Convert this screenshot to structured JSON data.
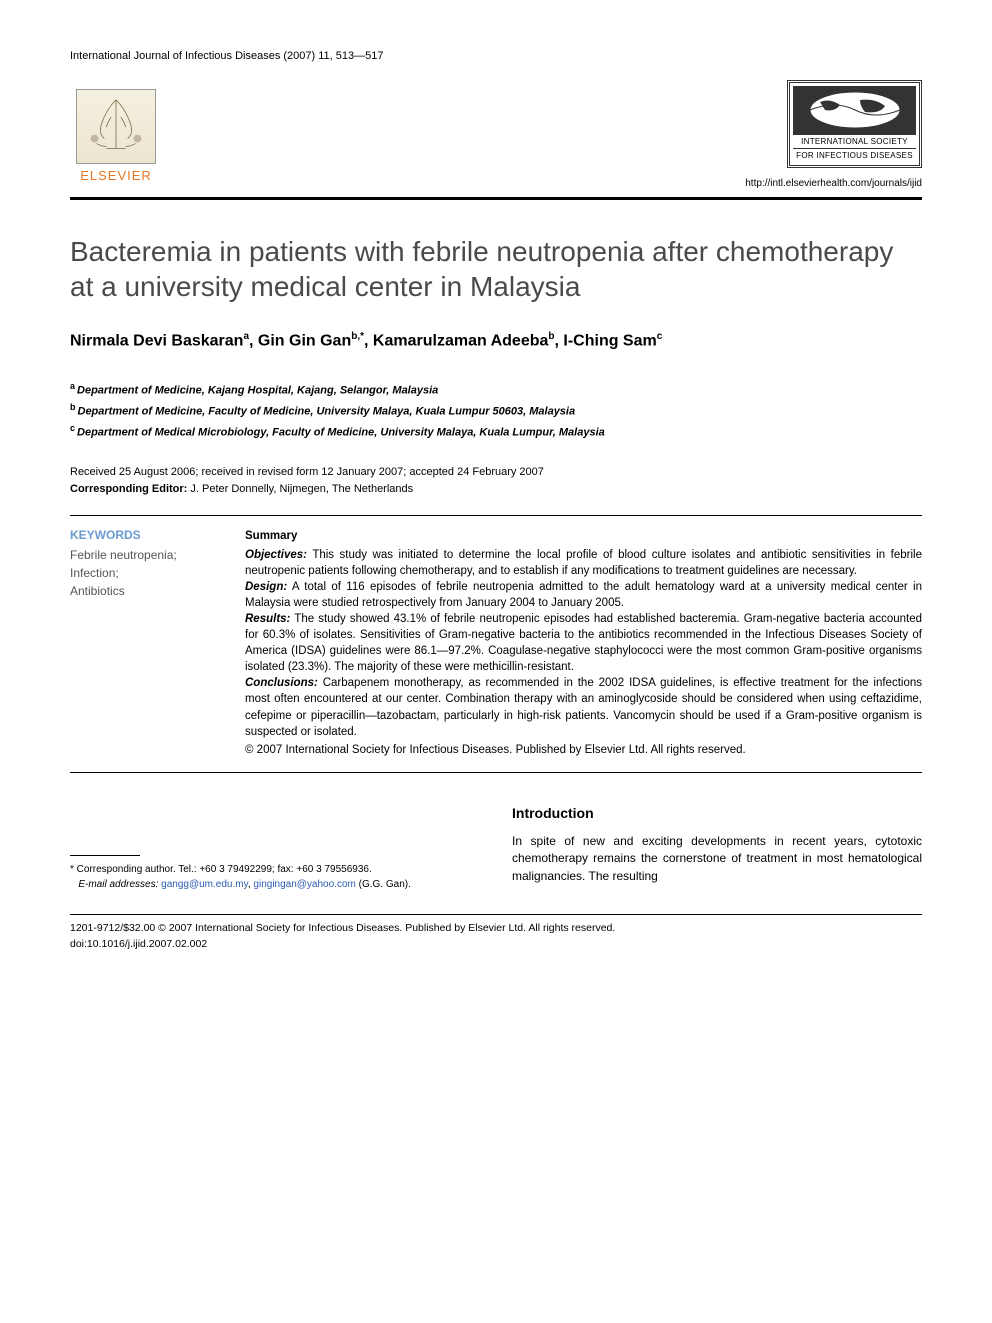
{
  "journal_ref": "International Journal of Infectious Diseases (2007) 11, 513—517",
  "publisher_name": "ELSEVIER",
  "society": {
    "line1": "INTERNATIONAL SOCIETY",
    "line2": "FOR INFECTIOUS DISEASES",
    "url": "http://intl.elsevierhealth.com/journals/ijid"
  },
  "title": "Bacteremia in patients with febrile neutropenia after chemotherapy at a university medical center in Malaysia",
  "authors_html": "Nirmala Devi Baskaran<sup>a</sup>, Gin Gin Gan<sup>b,</sup><sup class=\"star\">*</sup>, Kamarulzaman Adeeba<sup>b</sup>, I-Ching Sam<sup>c</sup>",
  "affiliations": [
    {
      "sup": "a",
      "text": "Department of Medicine, Kajang Hospital, Kajang, Selangor, Malaysia"
    },
    {
      "sup": "b",
      "text": "Department of Medicine, Faculty of Medicine, University Malaya, Kuala Lumpur 50603, Malaysia"
    },
    {
      "sup": "c",
      "text": "Department of Medical Microbiology, Faculty of Medicine, University Malaya, Kuala Lumpur, Malaysia"
    }
  ],
  "dates": {
    "received": "Received 25 August 2006; received in revised form 12 January 2007; accepted 24 February 2007",
    "editor": "Corresponding Editor: J. Peter Donnelly, Nijmegen, The Netherlands"
  },
  "keywords": {
    "heading": "KEYWORDS",
    "list": "Febrile neutropenia;\nInfection;\nAntibiotics"
  },
  "summary": {
    "heading": "Summary",
    "objectives": "This study was initiated to determine the local profile of blood culture isolates and antibiotic sensitivities in febrile neutropenic patients following chemotherapy, and to establish if any modifications to treatment guidelines are necessary.",
    "design": "A total of 116 episodes of febrile neutropenia admitted to the adult hematology ward at a university medical center in Malaysia were studied retrospectively from January 2004 to January 2005.",
    "results": "The study showed 43.1% of febrile neutropenic episodes had established bacteremia. Gram-negative bacteria accounted for 60.3% of isolates. Sensitivities of Gram-negative bacteria to the antibiotics recommended in the Infectious Diseases Society of America (IDSA) guidelines were 86.1—97.2%. Coagulase-negative staphylococci were the most common Gram-positive organisms isolated (23.3%). The majority of these were methicillin-resistant.",
    "conclusions": "Carbapenem monotherapy, as recommended in the 2002 IDSA guidelines, is effective treatment for the infections most often encountered at our center. Combination therapy with an aminoglycoside should be considered when using ceftazidime, cefepime or piperacillin—tazobactam, particularly in high-risk patients. Vancomycin should be used if a Gram-positive organism is suspected or isolated.",
    "copyright": "© 2007 International Society for Infectious Diseases. Published by Elsevier Ltd. All rights reserved."
  },
  "corresp": {
    "line1": "* Corresponding author. Tel.: +60 3 79492299; fax: +60 3 79556936.",
    "email_label": "E-mail addresses:",
    "email1": "gangg@um.edu.my",
    "email2": "gingingan@yahoo.com",
    "who": "(G.G. Gan)."
  },
  "intro": {
    "heading": "Introduction",
    "p1": "In spite of new and exciting developments in recent years, cytotoxic chemotherapy remains the cornerstone of treatment in most hematological malignancies. The resulting"
  },
  "footer": {
    "line1": "1201-9712/$32.00 © 2007 International Society for Infectious Diseases. Published by Elsevier Ltd. All rights reserved.",
    "line2": "doi:10.1016/j.ijid.2007.02.002"
  },
  "colors": {
    "elsevier_orange": "#e87722",
    "keyword_blue": "#6b9bd1",
    "link_blue": "#2a5db0",
    "text_gray": "#4a4a4a"
  }
}
